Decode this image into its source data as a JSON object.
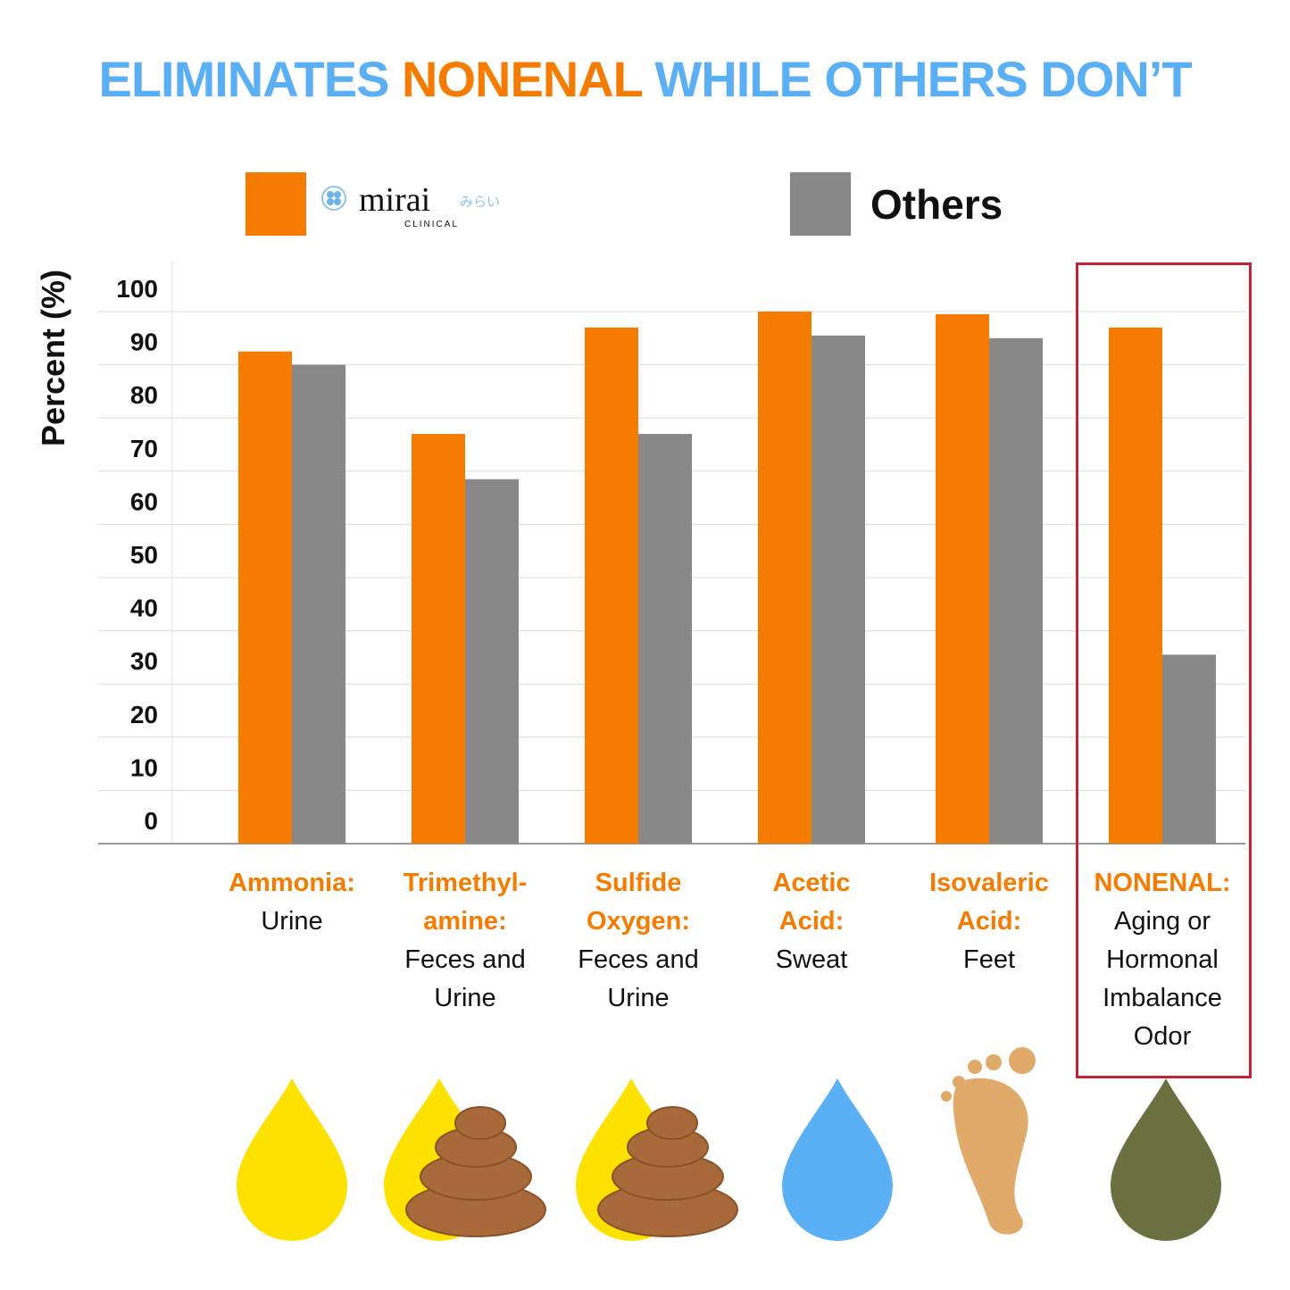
{
  "title": {
    "part1": "ELIMINATES ",
    "part2": "NONENAL",
    "part3": " WHILE OTHERS DON’T"
  },
  "legend": {
    "brand_name": "mirai",
    "brand_sub": "CLINICAL",
    "brand_kana": "みらい",
    "others": "Others"
  },
  "colors": {
    "mirai": "#f57c00",
    "others": "#888888",
    "title_blue": "#5aaff5",
    "highlight": "#c0243a"
  },
  "chart_data": {
    "type": "bar",
    "ylabel": "Percent (%)",
    "ylim": [
      0,
      100
    ],
    "yticks": [
      "0",
      "10",
      "20",
      "30",
      "40",
      "50",
      "60",
      "70",
      "80",
      "90",
      "100"
    ],
    "grid": true,
    "legend_placement": "top",
    "categories": [
      {
        "head": "Ammonia:",
        "sub": [
          "Urine"
        ],
        "icon": "yellow-drop-icon"
      },
      {
        "head": "Trimethyl- amine:",
        "sub": [
          "Feces and",
          "Urine"
        ],
        "icon": "yellow-drop-poop-icon"
      },
      {
        "head": "Sulfide Oxygen:",
        "sub": [
          "Feces and",
          "Urine"
        ],
        "icon": "yellow-drop-poop-icon"
      },
      {
        "head": "Acetic Acid:",
        "sub": [
          "Sweat"
        ],
        "icon": "blue-drop-icon"
      },
      {
        "head": "Isovaleric Acid:",
        "sub": [
          "Feet"
        ],
        "icon": "foot-icon"
      },
      {
        "head": "NONENAL:",
        "sub": [
          "Aging or",
          "Hormonal",
          "Imbalance",
          "Odor"
        ],
        "icon": "olive-drop-icon"
      }
    ],
    "series": [
      {
        "name": "mirai",
        "values": [
          92.5,
          77,
          97,
          100,
          99.5,
          97
        ]
      },
      {
        "name": "Others",
        "values": [
          90,
          68.5,
          77,
          95.5,
          95,
          35.5
        ]
      }
    ],
    "highlighted_category": "NONENAL:"
  }
}
